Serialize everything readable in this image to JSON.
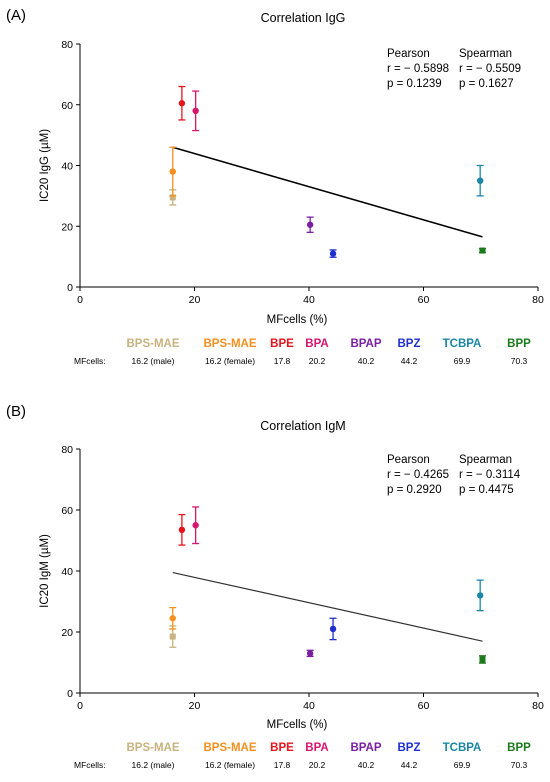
{
  "legend_row_label": "MFcells:",
  "chart_data": [
    {
      "type": "scatter",
      "panel_label": "(A)",
      "title": "Correlation IgG",
      "xlabel": "MFcells (%)",
      "ylabel": "IC20 IgG (µM)",
      "xlim": [
        0,
        80
      ],
      "ylim": [
        0,
        80
      ],
      "xticks": [
        0,
        20,
        40,
        60,
        80
      ],
      "yticks": [
        0,
        20,
        40,
        60,
        80
      ],
      "grid": false,
      "stats": {
        "pearson_header": "Pearson",
        "spearman_header": "Spearman",
        "pearson_r": "r = − 0.5898",
        "spearman_r": "r = − 0.5509",
        "pearson_p": "p = 0.1239",
        "spearman_p": "p = 0.1627"
      },
      "trendline": {
        "x": [
          16.2,
          70.3
        ],
        "y": [
          46,
          16.5
        ]
      },
      "points": [
        {
          "name": "BPS-MAE",
          "mf_label": "16.2 (male)",
          "x": 16.2,
          "y": 29.5,
          "err": 2.5,
          "color": "#c8b27f",
          "marker": "square"
        },
        {
          "name": "BPS-MAE",
          "mf_label": "16.2 (female)",
          "x": 16.2,
          "y": 38,
          "err": 8,
          "color": "#f5901e",
          "marker": "circle"
        },
        {
          "name": "BPE",
          "mf_label": "17.8",
          "x": 17.8,
          "y": 60.5,
          "err": 5.5,
          "color": "#e8141c",
          "marker": "circle"
        },
        {
          "name": "BPA",
          "mf_label": "20.2",
          "x": 20.2,
          "y": 58,
          "err": 6.5,
          "color": "#d6166e",
          "marker": "circle"
        },
        {
          "name": "BPAP",
          "mf_label": "40.2",
          "x": 40.2,
          "y": 20.5,
          "err": 2.5,
          "color": "#7b1fa2",
          "marker": "circle"
        },
        {
          "name": "BPZ",
          "mf_label": "44.2",
          "x": 44.2,
          "y": 11,
          "err": 1.2,
          "color": "#1f2fcf",
          "marker": "circle"
        },
        {
          "name": "TCBPA",
          "mf_label": "69.9",
          "x": 69.9,
          "y": 35,
          "err": 5,
          "color": "#1a87a3",
          "marker": "circle"
        },
        {
          "name": "BPP",
          "mf_label": "70.3",
          "x": 70.3,
          "y": 12,
          "err": 0.6,
          "color": "#1b7a1b",
          "marker": "square"
        }
      ]
    },
    {
      "type": "scatter",
      "panel_label": "(B)",
      "title": "Correlation IgM",
      "xlabel": "MFcells (%)",
      "ylabel": "IC20 IgM (µM)",
      "xlim": [
        0,
        80
      ],
      "ylim": [
        0,
        80
      ],
      "xticks": [
        0,
        20,
        40,
        60,
        80
      ],
      "yticks": [
        0,
        20,
        40,
        60,
        80
      ],
      "grid": false,
      "stats": {
        "pearson_header": "Pearson",
        "spearman_header": "Spearman",
        "pearson_r": "r = − 0.4265",
        "spearman_r": "r = − 0.3114",
        "pearson_p": "p = 0.2920",
        "spearman_p": "p = 0.4475"
      },
      "trendline": {
        "x": [
          16.2,
          70.3
        ],
        "y": [
          39.5,
          17
        ]
      },
      "points": [
        {
          "name": "BPS-MAE",
          "mf_label": "16.2 (male)",
          "x": 16.2,
          "y": 18.5,
          "err": 3.5,
          "color": "#c8b27f",
          "marker": "square"
        },
        {
          "name": "BPS-MAE",
          "mf_label": "16.2 (female)",
          "x": 16.2,
          "y": 24.5,
          "err": 3.5,
          "color": "#f5901e",
          "marker": "circle"
        },
        {
          "name": "BPE",
          "mf_label": "17.8",
          "x": 17.8,
          "y": 53.5,
          "err": 5,
          "color": "#e8141c",
          "marker": "circle"
        },
        {
          "name": "BPA",
          "mf_label": "20.2",
          "x": 20.2,
          "y": 55,
          "err": 6,
          "color": "#d6166e",
          "marker": "circle"
        },
        {
          "name": "BPAP",
          "mf_label": "40.2",
          "x": 40.2,
          "y": 13,
          "err": 1,
          "color": "#7b1fa2",
          "marker": "circle"
        },
        {
          "name": "BPZ",
          "mf_label": "44.2",
          "x": 44.2,
          "y": 21,
          "err": 3.5,
          "color": "#1f2fcf",
          "marker": "circle"
        },
        {
          "name": "TCBPA",
          "mf_label": "69.9",
          "x": 69.9,
          "y": 32,
          "err": 5,
          "color": "#1a87a3",
          "marker": "circle"
        },
        {
          "name": "BPP",
          "mf_label": "70.3",
          "x": 70.3,
          "y": 11,
          "err": 1.2,
          "color": "#1b7a1b",
          "marker": "square"
        }
      ]
    }
  ]
}
